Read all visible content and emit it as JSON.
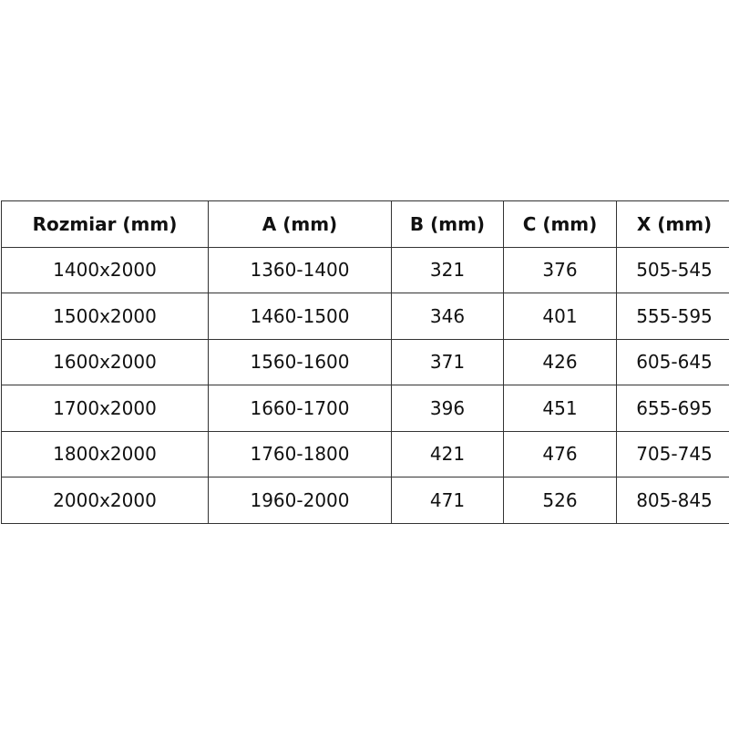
{
  "table": {
    "headers": [
      "Rozmiar (mm)",
      "A (mm)",
      "B (mm)",
      "C (mm)",
      "X (mm)"
    ],
    "rows": [
      [
        "1400x2000",
        "1360-1400",
        "321",
        "376",
        "505-545"
      ],
      [
        "1500x2000",
        "1460-1500",
        "346",
        "401",
        "555-595"
      ],
      [
        "1600x2000",
        "1560-1600",
        "371",
        "426",
        "605-645"
      ],
      [
        "1700x2000",
        "1660-1700",
        "396",
        "451",
        "655-695"
      ],
      [
        "1800x2000",
        "1760-1800",
        "421",
        "476",
        "705-745"
      ],
      [
        "2000x2000",
        "1960-2000",
        "471",
        "526",
        "805-845"
      ]
    ]
  }
}
